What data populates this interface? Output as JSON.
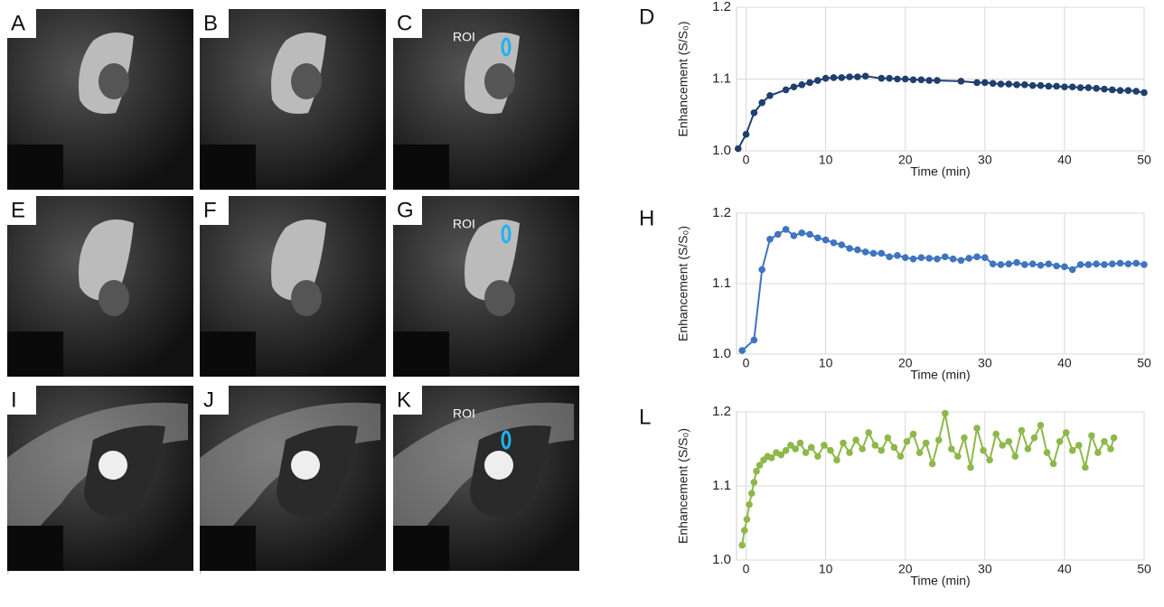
{
  "image_panels": [
    {
      "label": "A"
    },
    {
      "label": "B"
    },
    {
      "label": "C",
      "annotation": "ROI"
    },
    {
      "label": "E"
    },
    {
      "label": "F"
    },
    {
      "label": "G",
      "annotation": "ROI"
    },
    {
      "label": "I"
    },
    {
      "label": "J"
    },
    {
      "label": "K",
      "annotation": "ROI"
    }
  ],
  "chart_data": [
    {
      "type": "line",
      "label": "D",
      "y_label": "Enhancement (S/S₀)",
      "x_label": "Time (min)",
      "color": "#1f3f6e",
      "grid": true,
      "xlim": [
        -1.2,
        50
      ],
      "xticks": [
        0,
        10,
        20,
        30,
        40,
        50
      ],
      "ylim": [
        1.0,
        1.2
      ],
      "yticks": [
        {
          "value": 1.0,
          "label": "1.0"
        },
        1.1,
        1.2
      ],
      "x": [
        -1,
        0,
        1,
        2,
        3,
        5,
        6,
        7,
        8,
        9,
        10,
        11,
        12,
        13,
        14,
        15,
        17,
        18,
        19,
        20,
        21,
        22,
        23,
        24,
        27,
        29,
        30,
        31,
        32,
        33,
        34,
        35,
        36,
        37,
        38,
        39,
        40,
        41,
        42,
        43,
        44,
        45,
        46,
        47,
        48,
        49,
        50
      ],
      "values": [
        1.003,
        1.023,
        1.053,
        1.067,
        1.077,
        1.085,
        1.089,
        1.092,
        1.095,
        1.098,
        1.101,
        1.102,
        1.102,
        1.103,
        1.103,
        1.104,
        1.101,
        1.101,
        1.1,
        1.1,
        1.099,
        1.099,
        1.098,
        1.098,
        1.097,
        1.095,
        1.095,
        1.094,
        1.093,
        1.093,
        1.092,
        1.092,
        1.091,
        1.091,
        1.09,
        1.09,
        1.089,
        1.089,
        1.088,
        1.088,
        1.087,
        1.086,
        1.085,
        1.084,
        1.084,
        1.083,
        1.081
      ]
    },
    {
      "type": "line",
      "label": "H",
      "y_label": "Enhancement (S/S₀)",
      "x_label": "Time (min)",
      "color": "#3f74c0",
      "grid": true,
      "xlim": [
        -1.2,
        50
      ],
      "xticks": [
        0,
        10,
        20,
        30,
        40,
        50
      ],
      "ylim": [
        1.0,
        1.2
      ],
      "yticks": [
        {
          "value": 1.0,
          "label": "1.0"
        },
        1.1,
        1.2
      ],
      "x": [
        -0.5,
        1,
        2,
        3,
        4,
        5,
        6,
        7,
        8,
        9,
        10,
        11,
        12,
        13,
        14,
        15,
        16,
        17,
        18,
        19,
        20,
        21,
        22,
        23,
        24,
        25,
        26,
        27,
        28,
        29,
        30,
        31,
        32,
        33,
        34,
        35,
        36,
        37,
        38,
        39,
        40,
        41,
        42,
        43,
        44,
        45,
        46,
        47,
        48,
        49,
        50
      ],
      "values": [
        1.005,
        1.02,
        1.12,
        1.163,
        1.17,
        1.177,
        1.168,
        1.172,
        1.17,
        1.165,
        1.162,
        1.158,
        1.155,
        1.15,
        1.148,
        1.145,
        1.143,
        1.143,
        1.138,
        1.14,
        1.137,
        1.135,
        1.137,
        1.136,
        1.135,
        1.138,
        1.135,
        1.133,
        1.136,
        1.138,
        1.137,
        1.128,
        1.127,
        1.128,
        1.13,
        1.127,
        1.128,
        1.126,
        1.128,
        1.125,
        1.124,
        1.12,
        1.127,
        1.127,
        1.128,
        1.127,
        1.128,
        1.129,
        1.128,
        1.129,
        1.127
      ]
    },
    {
      "type": "line",
      "label": "L",
      "y_label": "Enhancement (S/S₀)",
      "x_label": "Time (min)",
      "color": "#8db84a",
      "grid": true,
      "xlim": [
        -1.2,
        50
      ],
      "xticks": [
        0,
        10,
        20,
        30,
        40,
        50
      ],
      "ylim": [
        1.0,
        1.2
      ],
      "yticks": [
        {
          "value": 1.0,
          "label": "1.0"
        },
        1.1,
        1.2
      ],
      "x": [
        -0.5,
        -0.2,
        0.1,
        0.4,
        0.7,
        1.0,
        1.3,
        1.7,
        2.2,
        2.7,
        3.2,
        3.8,
        4.4,
        5.0,
        5.6,
        6.2,
        6.8,
        7.5,
        8.2,
        9.0,
        9.8,
        10.6,
        11.4,
        12.2,
        13.0,
        13.8,
        14.6,
        15.4,
        16.2,
        17.0,
        17.8,
        18.6,
        19.4,
        20.2,
        21.0,
        21.8,
        22.6,
        23.4,
        24.2,
        25.0,
        25.8,
        26.6,
        27.4,
        28.2,
        29.0,
        29.8,
        30.6,
        31.4,
        32.2,
        33.0,
        33.8,
        34.6,
        35.4,
        36.2,
        37.0,
        37.8,
        38.6,
        39.4,
        40.2,
        41.0,
        41.8,
        42.6,
        43.4,
        44.2,
        45.0,
        45.8,
        46.2
      ],
      "values": [
        1.02,
        1.04,
        1.055,
        1.075,
        1.09,
        1.105,
        1.12,
        1.128,
        1.135,
        1.14,
        1.138,
        1.145,
        1.142,
        1.148,
        1.155,
        1.15,
        1.158,
        1.145,
        1.152,
        1.14,
        1.155,
        1.148,
        1.135,
        1.158,
        1.145,
        1.162,
        1.15,
        1.172,
        1.155,
        1.148,
        1.165,
        1.152,
        1.14,
        1.16,
        1.17,
        1.145,
        1.158,
        1.13,
        1.162,
        1.198,
        1.15,
        1.14,
        1.165,
        1.125,
        1.178,
        1.148,
        1.135,
        1.17,
        1.155,
        1.16,
        1.14,
        1.175,
        1.15,
        1.165,
        1.182,
        1.145,
        1.13,
        1.16,
        1.172,
        1.148,
        1.155,
        1.125,
        1.168,
        1.145,
        1.16,
        1.15,
        1.165
      ]
    }
  ]
}
